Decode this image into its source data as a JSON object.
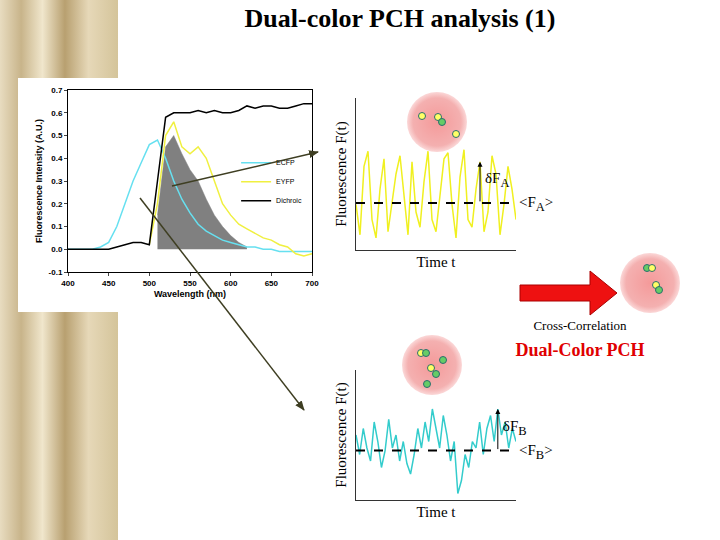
{
  "slide": {
    "title": "Dual-color PCH analysis (1)",
    "cross_correlation": "Cross-Correlation",
    "result": "Dual-Color PCH"
  },
  "chart_data": [
    {
      "type": "line",
      "x_label": "Wavelength (nm)",
      "y_label": "Fluorescence Intensity (A.U.)",
      "x": [
        400,
        410,
        420,
        430,
        440,
        450,
        460,
        470,
        480,
        490,
        500,
        510,
        520,
        530,
        540,
        550,
        560,
        570,
        580,
        590,
        600,
        610,
        620,
        630,
        640,
        650,
        660,
        670,
        680,
        690,
        700
      ],
      "series": [
        {
          "type": "area",
          "color": "#808080",
          "values": [
            null,
            null,
            null,
            null,
            null,
            null,
            null,
            null,
            null,
            null,
            null,
            0.15,
            0.45,
            0.5,
            0.42,
            0.35,
            0.3,
            0.22,
            0.15,
            0.1,
            0.06,
            0.03,
            0.01,
            null,
            null,
            null,
            null,
            null,
            null,
            null,
            null
          ]
        },
        {
          "name": "ECFP",
          "color": "#66e0f0",
          "values": [
            0,
            0,
            0,
            0,
            0.01,
            0.03,
            0.1,
            0.2,
            0.3,
            0.38,
            0.46,
            0.48,
            0.4,
            0.3,
            0.22,
            0.16,
            0.11,
            0.08,
            0.06,
            0.04,
            0.03,
            0.02,
            0.01,
            0.01,
            0,
            0,
            -0.01,
            -0.01,
            -0.01,
            -0.01,
            -0.01
          ]
        },
        {
          "name": "EYFP",
          "color": "#f0f040",
          "values": [
            null,
            null,
            null,
            null,
            null,
            null,
            null,
            null,
            null,
            null,
            0.02,
            0.2,
            0.5,
            0.56,
            0.45,
            0.42,
            0.45,
            0.4,
            0.3,
            0.2,
            0.15,
            0.11,
            0.09,
            0.07,
            0.05,
            0.04,
            0.02,
            0.01,
            -0.02,
            -0.03,
            -0.02
          ]
        },
        {
          "name": "Dichroic",
          "color": "#000000",
          "values": [
            0,
            0,
            0,
            0,
            0,
            0,
            0.01,
            0.02,
            0.03,
            0.03,
            0.02,
            0.3,
            0.58,
            0.6,
            0.6,
            0.6,
            0.61,
            0.6,
            0.61,
            0.6,
            0.6,
            0.61,
            0.63,
            0.62,
            0.63,
            0.63,
            0.62,
            0.62,
            0.63,
            0.64,
            0.64
          ]
        }
      ],
      "xlim": [
        400,
        700
      ],
      "xticks": [
        400,
        450,
        500,
        550,
        600,
        650,
        700
      ],
      "ylim": [
        -0.1,
        0.7
      ],
      "yticks": [
        -0.1,
        {
          "value": 0,
          "label": "0.0"
        },
        0.1,
        0.2,
        0.3,
        0.4,
        0.5,
        0.6,
        0.7
      ],
      "grid": false,
      "legend": "right"
    },
    {
      "type": "line",
      "x_label": "Time t",
      "y_label": "Fluorescence F(t)",
      "x": [
        0,
        1,
        2,
        3,
        4,
        5,
        6,
        7,
        8,
        9,
        10,
        11,
        12,
        13,
        14,
        15,
        16,
        17,
        18,
        19,
        20,
        21,
        22,
        23,
        24,
        25,
        26,
        27,
        28,
        29,
        30,
        31,
        32,
        33,
        34,
        35,
        36,
        37,
        38,
        39,
        40
      ],
      "values": [
        30,
        10,
        55,
        65,
        20,
        8,
        40,
        60,
        12,
        30,
        50,
        62,
        35,
        10,
        58,
        25,
        15,
        45,
        65,
        20,
        12,
        35,
        60,
        64,
        30,
        8,
        48,
        66,
        20,
        15,
        40,
        58,
        12,
        25,
        62,
        50,
        10,
        30,
        55,
        40,
        20
      ],
      "color": "#f0f020",
      "xlim": [
        0,
        40
      ],
      "ylim": [
        0,
        100
      ],
      "tick_labels": false,
      "mean": {
        "value": 31,
        "label": "<FA>"
      },
      "delta": {
        "x": 31,
        "label": "δFA"
      }
    },
    {
      "type": "line",
      "x_label": "Time t",
      "y_label": "Fluorescence F(t)",
      "x": [
        0,
        1,
        2,
        3,
        4,
        5,
        6,
        7,
        8,
        9,
        10,
        11,
        12,
        13,
        14,
        15,
        16,
        17,
        18,
        19,
        20,
        21,
        22,
        23,
        24,
        25,
        26,
        27,
        28,
        29,
        30,
        31,
        32,
        33,
        34,
        35,
        36,
        37,
        38,
        39,
        40,
        41,
        42,
        43,
        44
      ],
      "values": [
        50,
        35,
        55,
        40,
        30,
        60,
        45,
        25,
        38,
        62,
        40,
        50,
        30,
        45,
        28,
        20,
        35,
        55,
        40,
        60,
        45,
        70,
        55,
        40,
        65,
        50,
        30,
        45,
        5,
        15,
        35,
        25,
        45,
        40,
        60,
        35,
        55,
        65,
        45,
        70,
        50,
        60,
        40,
        55,
        45
      ],
      "color": "#33cccc",
      "xlim": [
        0,
        44
      ],
      "ylim": [
        0,
        100
      ],
      "tick_labels": false,
      "mean": {
        "value": 38,
        "label": "<FB>"
      },
      "delta": {
        "x": 39,
        "label": "δFB"
      }
    }
  ]
}
